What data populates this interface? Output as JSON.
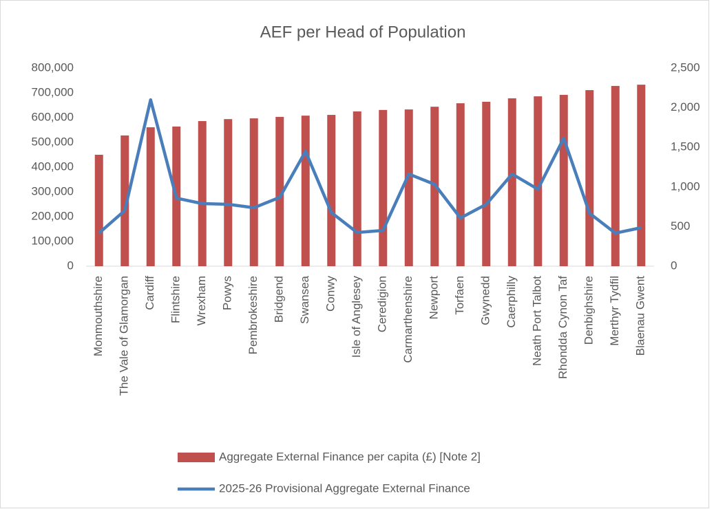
{
  "chart_data": {
    "type": "bar-line",
    "title": "AEF per Head of Population",
    "categories": [
      "Monmouthshire",
      "The Vale of Glamorgan",
      "Cardiff",
      "Flintshire",
      "Wrexham",
      "Powys",
      "Pembrokeshire",
      "Bridgend",
      "Swansea",
      "Conwy",
      "Isle of Anglesey",
      "Ceredigion",
      "Carmarthenshire",
      "Newport",
      "Torfaen",
      "Gwynedd",
      "Caerphilly",
      "Neath Port Talbot",
      "Rhondda Cynon Taf",
      "Denbighshire",
      "Merthyr Tydfil",
      "Blaenau Gwent"
    ],
    "series": [
      {
        "name": "Aggregate External Finance per capita (£) [Note 2]",
        "type": "bar",
        "axis": "y",
        "color": "#c0504d",
        "values": [
          450000,
          528000,
          561000,
          564000,
          586000,
          594000,
          597000,
          603000,
          608000,
          611000,
          625000,
          631000,
          633000,
          644000,
          658000,
          664000,
          678000,
          686000,
          692000,
          711000,
          728000,
          733000
        ]
      },
      {
        "name": "2025-26 Provisional Aggregate External Finance",
        "type": "line",
        "axis": "y2",
        "color": "#4a7ebb",
        "values": [
          417,
          703,
          2100,
          859,
          790,
          781,
          738,
          868,
          1450,
          677,
          425,
          451,
          1163,
          1033,
          608,
          781,
          1163,
          972,
          1615,
          668,
          417,
          486
        ]
      }
    ],
    "ylim": [
      0,
      800000
    ],
    "yticks": [
      0,
      {
        "value": 100000,
        "label": "100,000"
      },
      {
        "value": 200000,
        "label": "200,000"
      },
      {
        "value": 300000,
        "label": "300,000"
      },
      {
        "value": 400000,
        "label": "400,000"
      },
      {
        "value": 500000,
        "label": "500,000"
      },
      {
        "value": 600000,
        "label": "600,000"
      },
      {
        "value": 700000,
        "label": "700,000"
      },
      {
        "value": 800000,
        "label": "800,000"
      }
    ],
    "y2lim": [
      0,
      2500
    ],
    "y2ticks": [
      0,
      500,
      {
        "value": 1000,
        "label": "1,000"
      },
      {
        "value": 1500,
        "label": "1,500"
      },
      {
        "value": 2000,
        "label": "2,000"
      },
      {
        "value": 2500,
        "label": "2,500"
      }
    ],
    "legend": "bottom"
  }
}
